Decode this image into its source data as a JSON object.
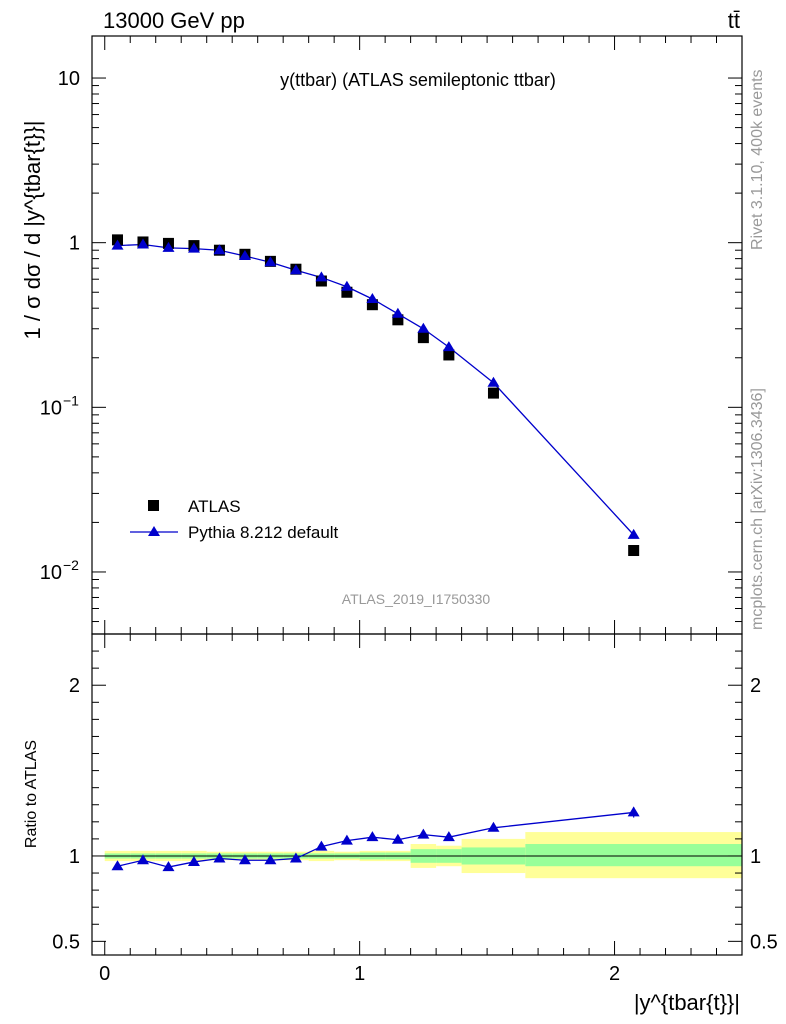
{
  "header": {
    "energy_label": "13000 GeV pp",
    "process_label": "tt̄"
  },
  "side_labels": {
    "rivet": "Rivet 3.1.10,  400k events",
    "mcplots": "mcplots.cern.ch [arXiv:1306.3436]"
  },
  "chart_data": [
    {
      "type": "scatter",
      "panel": "main",
      "title": "y(ttbar) (ATLAS semileptonic ttbar)",
      "analysis_tag": "ATLAS_2019_I1750330",
      "ylabel": "1 / σ dσ / d |y^{tbar{t}}|",
      "xlabel": "",
      "yscale": "log",
      "xlim": [
        -0.05,
        2.5
      ],
      "ylim": [
        0.0042,
        18
      ],
      "y_ticks": [
        {
          "value": 10,
          "label": "10"
        },
        {
          "value": 1,
          "label": "1"
        },
        {
          "value": 0.1,
          "label": "10",
          "exp": "−1"
        },
        {
          "value": 0.01,
          "label": "10",
          "exp": "−2"
        }
      ],
      "x": [
        0.05,
        0.15,
        0.25,
        0.35,
        0.45,
        0.55,
        0.65,
        0.75,
        0.85,
        0.95,
        1.05,
        1.15,
        1.25,
        1.35,
        1.525,
        2.075
      ],
      "series": [
        {
          "name": "ATLAS",
          "marker": "square",
          "color": "#000000",
          "values": [
            1.04,
            1.01,
            0.99,
            0.96,
            0.9,
            0.85,
            0.77,
            0.69,
            0.585,
            0.5,
            0.42,
            0.34,
            0.265,
            0.208,
            0.122,
            0.0135
          ]
        },
        {
          "name": "Pythia 8.212 default",
          "marker": "triangle",
          "color": "#0000cc",
          "values": [
            0.96,
            0.975,
            0.93,
            0.92,
            0.9,
            0.83,
            0.76,
            0.68,
            0.615,
            0.54,
            0.455,
            0.37,
            0.3,
            0.232,
            0.141,
            0.0168
          ]
        }
      ],
      "legend": [
        {
          "label": "ATLAS",
          "marker": "square"
        },
        {
          "label": "Pythia 8.212 default",
          "marker": "triangle"
        }
      ]
    },
    {
      "type": "line",
      "panel": "ratio",
      "ylabel": "Ratio to ATLAS",
      "xlabel": "|y^{tbar{t}}|",
      "xlim": [
        -0.05,
        2.5
      ],
      "ylim": [
        0.42,
        2.3
      ],
      "x_ticks": [
        0,
        1,
        2
      ],
      "y_ticks": [
        0.5,
        1,
        2
      ],
      "y_ticks_labeled": [
        0.5,
        1,
        2
      ],
      "x": [
        0.05,
        0.15,
        0.25,
        0.35,
        0.45,
        0.55,
        0.65,
        0.75,
        0.85,
        0.95,
        1.05,
        1.15,
        1.25,
        1.35,
        1.525,
        2.075
      ],
      "ratio_values": [
        0.94,
        0.975,
        0.935,
        0.965,
        0.985,
        0.975,
        0.975,
        0.985,
        1.055,
        1.09,
        1.11,
        1.095,
        1.125,
        1.11,
        1.165,
        1.255
      ],
      "ratio_errors": [
        0.01,
        0.01,
        0.01,
        0.01,
        0.01,
        0.01,
        0.01,
        0.01,
        0.01,
        0.012,
        0.014,
        0.016,
        0.02,
        0.022,
        0.02,
        0.03
      ],
      "bands": [
        {
          "x0": 0.0,
          "x1": 0.1,
          "stat": [
            0.985,
            1.015
          ],
          "total": [
            0.97,
            1.03
          ]
        },
        {
          "x0": 0.1,
          "x1": 0.2,
          "stat": [
            0.985,
            1.015
          ],
          "total": [
            0.97,
            1.03
          ]
        },
        {
          "x0": 0.2,
          "x1": 0.3,
          "stat": [
            0.985,
            1.015
          ],
          "total": [
            0.97,
            1.03
          ]
        },
        {
          "x0": 0.3,
          "x1": 0.4,
          "stat": [
            0.985,
            1.015
          ],
          "total": [
            0.97,
            1.03
          ]
        },
        {
          "x0": 0.4,
          "x1": 0.5,
          "stat": [
            0.985,
            1.015
          ],
          "total": [
            0.975,
            1.025
          ]
        },
        {
          "x0": 0.5,
          "x1": 0.6,
          "stat": [
            0.985,
            1.015
          ],
          "total": [
            0.975,
            1.025
          ]
        },
        {
          "x0": 0.6,
          "x1": 0.7,
          "stat": [
            0.985,
            1.015
          ],
          "total": [
            0.975,
            1.025
          ]
        },
        {
          "x0": 0.7,
          "x1": 0.8,
          "stat": [
            0.985,
            1.015
          ],
          "total": [
            0.975,
            1.025
          ]
        },
        {
          "x0": 0.8,
          "x1": 0.9,
          "stat": [
            0.985,
            1.015
          ],
          "total": [
            0.97,
            1.03
          ]
        },
        {
          "x0": 0.9,
          "x1": 1.0,
          "stat": [
            0.985,
            1.015
          ],
          "total": [
            0.975,
            1.025
          ]
        },
        {
          "x0": 1.0,
          "x1": 1.1,
          "stat": [
            0.98,
            1.02
          ],
          "total": [
            0.97,
            1.03
          ]
        },
        {
          "x0": 1.1,
          "x1": 1.2,
          "stat": [
            0.98,
            1.02
          ],
          "total": [
            0.97,
            1.03
          ]
        },
        {
          "x0": 1.2,
          "x1": 1.3,
          "stat": [
            0.96,
            1.04
          ],
          "total": [
            0.93,
            1.07
          ]
        },
        {
          "x0": 1.3,
          "x1": 1.4,
          "stat": [
            0.96,
            1.04
          ],
          "total": [
            0.94,
            1.06
          ]
        },
        {
          "x0": 1.4,
          "x1": 1.65,
          "stat": [
            0.95,
            1.05
          ],
          "total": [
            0.9,
            1.1
          ]
        },
        {
          "x0": 1.65,
          "x1": 2.5,
          "stat": [
            0.94,
            1.07
          ],
          "total": [
            0.87,
            1.14
          ]
        }
      ]
    }
  ],
  "colors": {
    "band_total": "#ffff99",
    "band_stat": "#99ff99",
    "mc": "#0000cc",
    "data": "#000000",
    "grey_text": "#999999"
  }
}
